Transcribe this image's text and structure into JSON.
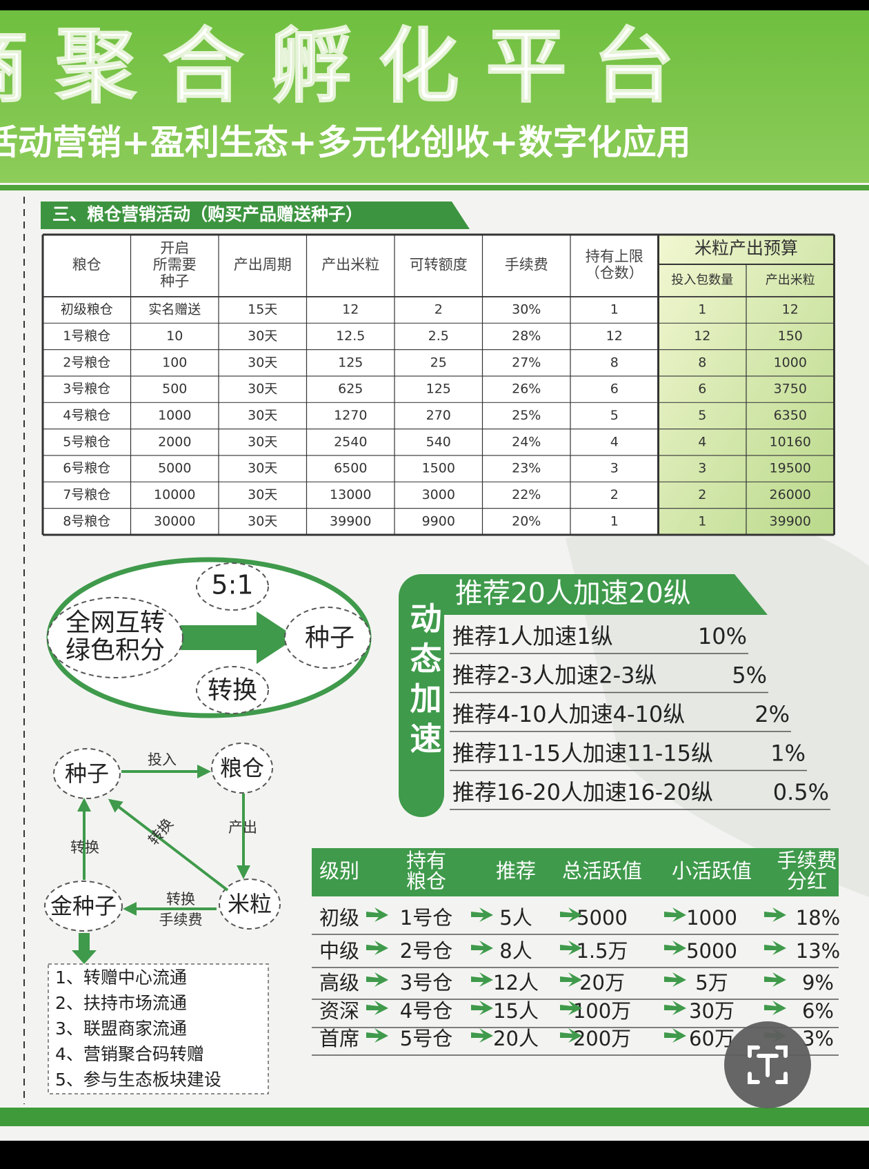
{
  "header": {
    "title": "商聚合孵化平台",
    "subtitle": "活动营销+盈利生态+多元化创收+数字化应用"
  },
  "section_title": "三、粮仓营销活动（购买产品赠送种子）",
  "table": {
    "headers": [
      [
        "粮仓"
      ],
      [
        "开启",
        "所需要",
        "种子"
      ],
      [
        "产出周期"
      ],
      [
        "产出米粒"
      ],
      [
        "可转额度"
      ],
      [
        "手续费"
      ],
      [
        "持有上限",
        "（仓数）"
      ]
    ],
    "group_header": "米粒产出预算",
    "sub_headers": [
      "投入包数量",
      "产出米粒"
    ],
    "rows": [
      [
        "初级粮仓",
        "实名赠送",
        "15天",
        "12",
        "2",
        "30%",
        "1",
        "1",
        "12"
      ],
      [
        "1号粮仓",
        "10",
        "30天",
        "12.5",
        "2.5",
        "28%",
        "12",
        "12",
        "150"
      ],
      [
        "2号粮仓",
        "100",
        "30天",
        "125",
        "25",
        "27%",
        "8",
        "8",
        "1000"
      ],
      [
        "3号粮仓",
        "500",
        "30天",
        "625",
        "125",
        "26%",
        "6",
        "6",
        "3750"
      ],
      [
        "4号粮仓",
        "1000",
        "30天",
        "1270",
        "270",
        "25%",
        "5",
        "5",
        "6350"
      ],
      [
        "5号粮仓",
        "2000",
        "30天",
        "2540",
        "540",
        "24%",
        "4",
        "4",
        "10160"
      ],
      [
        "6号粮仓",
        "5000",
        "30天",
        "6500",
        "1500",
        "23%",
        "3",
        "3",
        "19500"
      ],
      [
        "7号粮仓",
        "10000",
        "30天",
        "13000",
        "3000",
        "22%",
        "2",
        "2",
        "26000"
      ],
      [
        "8号粮仓",
        "30000",
        "30天",
        "39900",
        "9900",
        "20%",
        "1",
        "1",
        "39900"
      ]
    ]
  },
  "conversion": {
    "source": [
      "全网互转",
      "绿色积分"
    ],
    "target": "种子",
    "ratio": "5:1",
    "label": "转换"
  },
  "flow": {
    "nodes": [
      "种子",
      "粮仓",
      "米粒",
      "金种子"
    ],
    "edge_labels": {
      "invest": "投入",
      "output": "产出",
      "diagonal": "转换",
      "left": "转换",
      "fee": [
        "转换",
        "手续费"
      ]
    },
    "uses": [
      "1、转赠中心流通",
      "2、扶持市场流通",
      "3、联盟商家流通",
      "4、营销聚合码转赠",
      "5、参与生态板块建设"
    ]
  },
  "acceleration": {
    "label": "动态加速",
    "title": "推荐20人加速20纵",
    "items": [
      {
        "text": "推荐1人加速1纵",
        "rate": "10%"
      },
      {
        "text": "推荐2-3人加速2-3纵",
        "rate": "5%"
      },
      {
        "text": "推荐4-10人加速4-10纵",
        "rate": "2%"
      },
      {
        "text": "推荐11-15人加速11-15纵",
        "rate": "1%"
      },
      {
        "text": "推荐16-20人加速16-20纵",
        "rate": "0.5%"
      }
    ]
  },
  "levels": {
    "headers": [
      [
        "级别"
      ],
      [
        "持有",
        "粮仓"
      ],
      [
        "推荐"
      ],
      [
        "总活跃值"
      ],
      [
        "小活跃值"
      ],
      [
        "手续费",
        "分红"
      ]
    ],
    "rows": [
      [
        "初级",
        "1号仓",
        "5人",
        "5000",
        "1000",
        "18%"
      ],
      [
        "中级",
        "2号仓",
        "8人",
        "1.5万",
        "5000",
        "13%"
      ],
      [
        "高级",
        "3号仓",
        "12人",
        "20万",
        "5万",
        "9%"
      ],
      [
        "资深",
        "4号仓",
        "15人",
        "100万",
        "30万",
        "6%"
      ],
      [
        "首席",
        "5号仓",
        "20人",
        "200万",
        "60万",
        "3%"
      ]
    ]
  }
}
